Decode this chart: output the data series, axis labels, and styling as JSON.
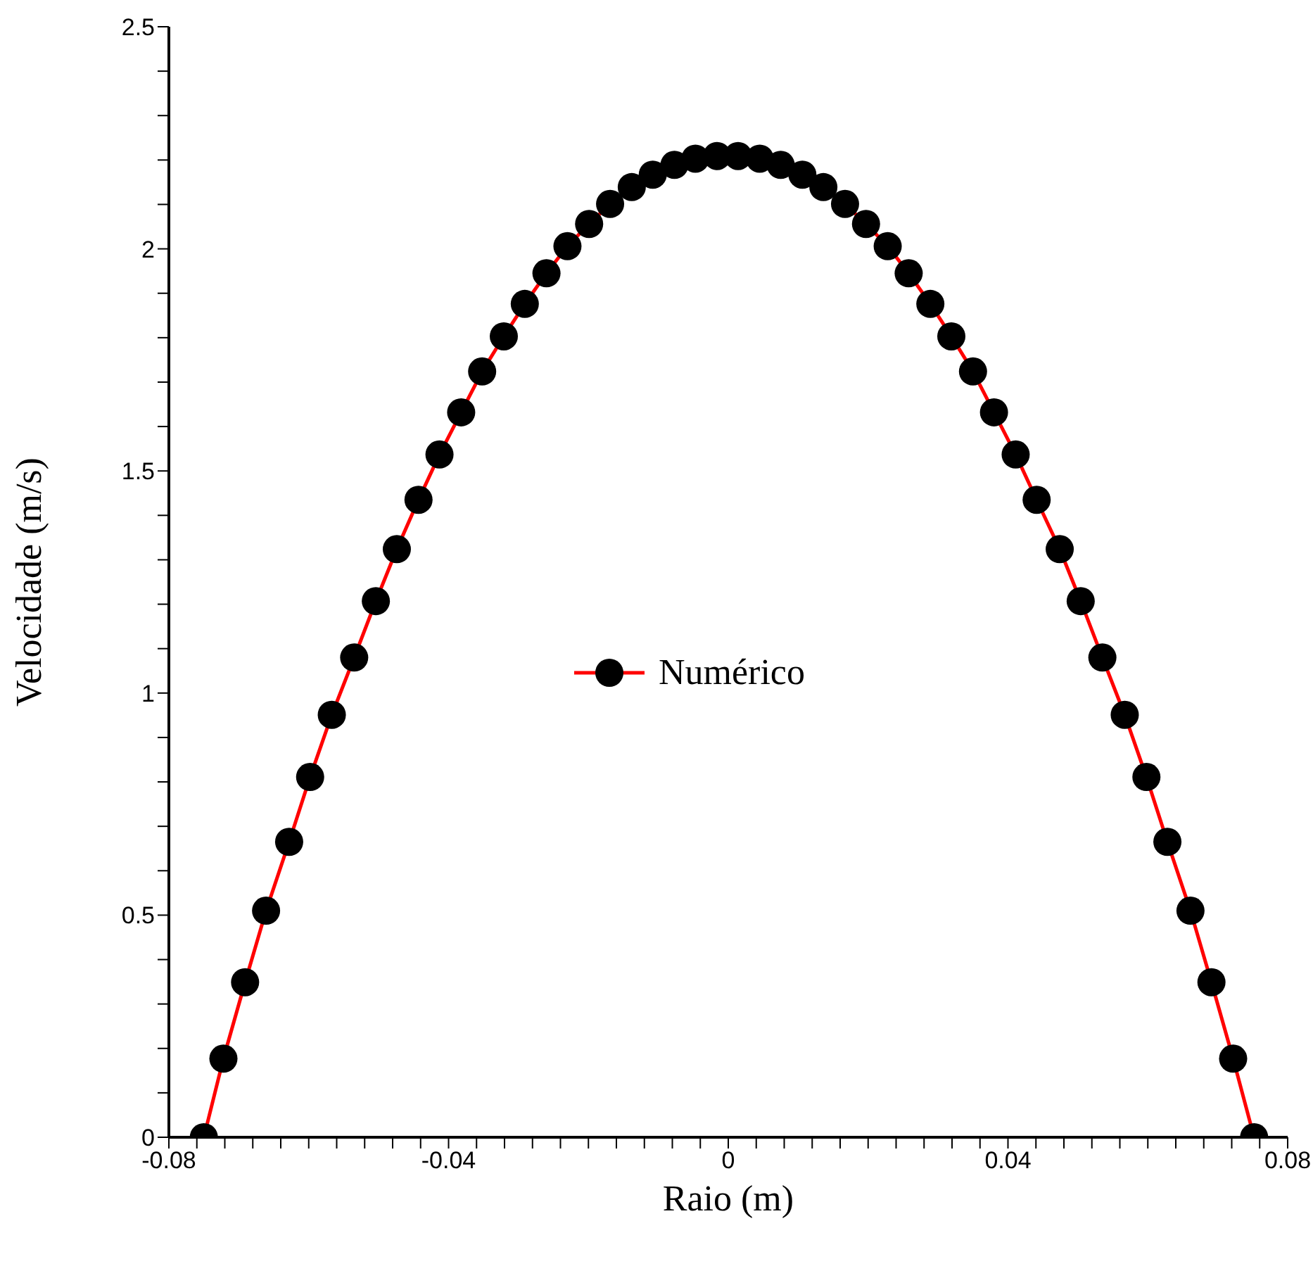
{
  "chart_data": {
    "type": "line",
    "xlabel": "Raio (m)",
    "ylabel": "Velocidade (m/s)",
    "xlim": [
      -0.08,
      0.08
    ],
    "xticks": [
      -0.08,
      {
        "value": -0.076,
        "label": null
      },
      {
        "value": -0.072,
        "label": null
      },
      {
        "value": -0.068,
        "label": null
      },
      {
        "value": -0.064,
        "label": null
      },
      {
        "value": -0.06,
        "label": null
      },
      {
        "value": -0.056,
        "label": null
      },
      {
        "value": -0.052,
        "label": null
      },
      {
        "value": -0.048,
        "label": null
      },
      {
        "value": -0.044,
        "label": null
      },
      -0.04,
      {
        "value": -0.036,
        "label": null
      },
      {
        "value": -0.032,
        "label": null
      },
      {
        "value": -0.028,
        "label": null
      },
      {
        "value": -0.024,
        "label": null
      },
      {
        "value": -0.02,
        "label": null
      },
      {
        "value": -0.016,
        "label": null
      },
      {
        "value": -0.012,
        "label": null
      },
      {
        "value": -0.008,
        "label": null
      },
      {
        "value": -0.004,
        "label": null
      },
      0,
      {
        "value": 0.004,
        "label": null
      },
      {
        "value": 0.008,
        "label": null
      },
      {
        "value": 0.012,
        "label": null
      },
      {
        "value": 0.016,
        "label": null
      },
      {
        "value": 0.02,
        "label": null
      },
      {
        "value": 0.024,
        "label": null
      },
      {
        "value": 0.028,
        "label": null
      },
      {
        "value": 0.032,
        "label": null
      },
      {
        "value": 0.036,
        "label": null
      },
      0.04,
      {
        "value": 0.044,
        "label": null
      },
      {
        "value": 0.048,
        "label": null
      },
      {
        "value": 0.052,
        "label": null
      },
      {
        "value": 0.056,
        "label": null
      },
      {
        "value": 0.06,
        "label": null
      },
      {
        "value": 0.064,
        "label": null
      },
      {
        "value": 0.068,
        "label": null
      },
      {
        "value": 0.072,
        "label": null
      },
      {
        "value": 0.076,
        "label": null
      },
      0.08
    ],
    "ylim": [
      0,
      2.5
    ],
    "yticks": [
      0,
      {
        "value": 0.1,
        "label": null
      },
      {
        "value": 0.2,
        "label": null
      },
      {
        "value": 0.3,
        "label": null
      },
      {
        "value": 0.4,
        "label": null
      },
      0.5,
      {
        "value": 0.6,
        "label": null
      },
      {
        "value": 0.7,
        "label": null
      },
      {
        "value": 0.8,
        "label": null
      },
      {
        "value": 0.9,
        "label": null
      },
      1,
      {
        "value": 1.1,
        "label": null
      },
      {
        "value": 1.2,
        "label": null
      },
      {
        "value": 1.3,
        "label": null
      },
      {
        "value": 1.4,
        "label": null
      },
      1.5,
      {
        "value": 1.6,
        "label": null
      },
      {
        "value": 1.7,
        "label": null
      },
      {
        "value": 1.8,
        "label": null
      },
      {
        "value": 1.9,
        "label": null
      },
      2,
      {
        "value": 2.1,
        "label": null
      },
      {
        "value": 2.2,
        "label": null
      },
      {
        "value": 2.3,
        "label": null
      },
      {
        "value": 2.4,
        "label": null
      },
      2.5
    ],
    "grid": false,
    "legend": "center",
    "marker": "circle",
    "line_style": "solid",
    "series": [
      {
        "name": "Numérico",
        "color": "#ff0000",
        "colors": [
          "#000000",
          "#000000",
          "#000000",
          "#000000",
          "#000000",
          "#000000",
          "#000000",
          "#000000",
          "#000000",
          "#000000",
          "#000000",
          "#000000",
          "#000000",
          "#000000",
          "#000000",
          "#000000",
          "#000000",
          "#000000",
          "#000000",
          "#000000",
          "#000000",
          "#000000",
          "#000000",
          "#000000",
          "#000000",
          "#000000",
          "#000000",
          "#000000",
          "#000000",
          "#000000",
          "#000000",
          "#000000",
          "#000000",
          "#000000",
          "#000000",
          "#000000",
          "#000000",
          "#000000",
          "#000000",
          "#000000",
          "#000000",
          "#000000",
          "#000000",
          "#000000",
          "#000000",
          "#000000",
          "#000000",
          "#000000",
          "#000000",
          "#000000"
        ],
        "x": [
          -0.075,
          -0.0722,
          -0.0691,
          -0.0661,
          -0.0628,
          -0.0598,
          -0.0567,
          -0.0535,
          -0.0504,
          -0.0474,
          -0.0443,
          -0.0413,
          -0.0382,
          -0.0352,
          -0.0321,
          -0.0291,
          -0.026,
          -0.023,
          -0.0199,
          -0.0169,
          -0.0138,
          -0.0108,
          -0.0077,
          -0.0047,
          -0.0016,
          0.0014,
          0.0045,
          0.0075,
          0.0106,
          0.0136,
          0.0167,
          0.0197,
          0.0228,
          0.0258,
          0.0289,
          0.0319,
          0.035,
          0.038,
          0.0411,
          0.0441,
          0.0474,
          0.0504,
          0.0535,
          0.0567,
          0.0598,
          0.0628,
          0.0661,
          0.0691,
          0.0722,
          0.0752
        ],
        "values": [
          0,
          0.177,
          0.349,
          0.51,
          0.665,
          0.811,
          0.951,
          1.08,
          1.207,
          1.324,
          1.435,
          1.537,
          1.632,
          1.724,
          1.803,
          1.876,
          1.945,
          2.006,
          2.056,
          2.101,
          2.139,
          2.167,
          2.189,
          2.203,
          2.209,
          2.209,
          2.203,
          2.189,
          2.167,
          2.139,
          2.101,
          2.056,
          2.006,
          1.945,
          1.876,
          1.803,
          1.724,
          1.632,
          1.537,
          1.435,
          1.324,
          1.207,
          1.08,
          0.951,
          0.811,
          0.665,
          0.51,
          0.349,
          0.177,
          0
        ]
      }
    ]
  }
}
